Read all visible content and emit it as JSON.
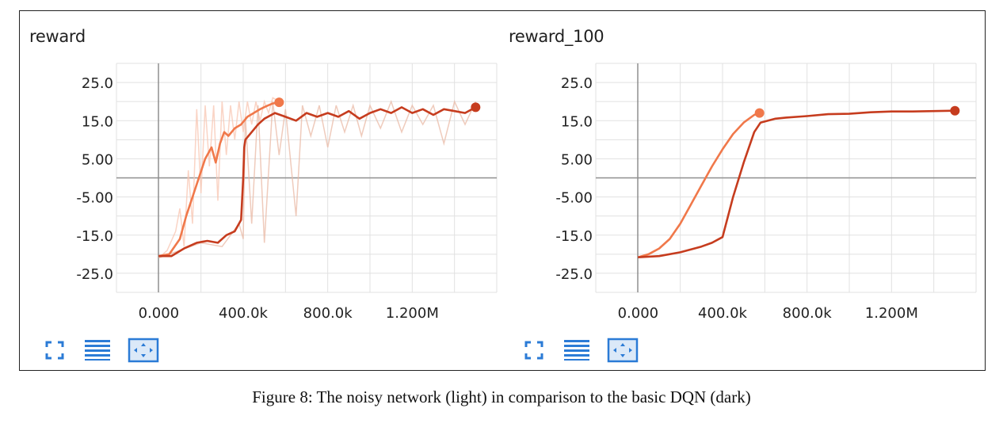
{
  "caption": "Figure 8: The noisy network (light) in comparison to the basic DQN (dark)",
  "colors": {
    "light": "#f0784a",
    "dark": "#c63c1e",
    "raw_light": "#f8c6b2",
    "raw_dark": "#eab9a6",
    "axis": "#8f8f8f",
    "grid": "#e1e1e1",
    "icon": "#2b7bd6"
  },
  "panels": [
    {
      "title": "reward",
      "toolbar": [
        "expand-icon",
        "list-icon",
        "fit-domain-icon"
      ]
    },
    {
      "title": "reward_100",
      "toolbar": [
        "expand-icon",
        "list-icon",
        "fit-domain-icon"
      ]
    }
  ],
  "chart_data": [
    {
      "type": "line",
      "title": "reward",
      "xlim": [
        -200000,
        1600000
      ],
      "ylim": [
        -30,
        30
      ],
      "grid": true,
      "x_ticks": [
        0,
        400000,
        800000,
        1200000
      ],
      "x_tick_labels": [
        "0.000",
        "400.0k",
        "800.0k",
        "1.200M"
      ],
      "y_ticks": [
        25,
        15,
        5,
        -5,
        -15,
        -25
      ],
      "y_tick_labels": [
        "25.0",
        "15.0",
        "5.00",
        "-5.00",
        "-15.0",
        "-25.0"
      ],
      "series": [
        {
          "style": "light",
          "smoothed": [
            [
              0,
              -20.5
            ],
            [
              50000,
              -20
            ],
            [
              100000,
              -16
            ],
            [
              130000,
              -10
            ],
            [
              160000,
              -5
            ],
            [
              190000,
              0
            ],
            [
              220000,
              5
            ],
            [
              250000,
              8
            ],
            [
              270000,
              4
            ],
            [
              290000,
              9
            ],
            [
              310000,
              12
            ],
            [
              330000,
              11
            ],
            [
              360000,
              13
            ],
            [
              390000,
              14
            ],
            [
              420000,
              16
            ],
            [
              450000,
              17
            ],
            [
              480000,
              18
            ],
            [
              510000,
              18.8
            ],
            [
              540000,
              19.5
            ],
            [
              570000,
              19.8
            ]
          ],
          "raw": [
            [
              0,
              -21
            ],
            [
              40000,
              -19
            ],
            [
              80000,
              -14
            ],
            [
              100000,
              -8
            ],
            [
              120000,
              -18
            ],
            [
              140000,
              2
            ],
            [
              160000,
              -12
            ],
            [
              180000,
              18
            ],
            [
              200000,
              -4
            ],
            [
              220000,
              19
            ],
            [
              240000,
              3
            ],
            [
              260000,
              19
            ],
            [
              280000,
              -6
            ],
            [
              300000,
              20
            ],
            [
              320000,
              6
            ],
            [
              340000,
              19
            ],
            [
              360000,
              10
            ],
            [
              380000,
              20
            ],
            [
              400000,
              12
            ],
            [
              420000,
              20
            ],
            [
              440000,
              14
            ],
            [
              460000,
              20
            ],
            [
              480000,
              15
            ],
            [
              500000,
              20
            ],
            [
              520000,
              17
            ],
            [
              540000,
              21
            ],
            [
              570000,
              20
            ]
          ]
        },
        {
          "style": "dark",
          "smoothed": [
            [
              0,
              -20.5
            ],
            [
              60000,
              -20.5
            ],
            [
              120000,
              -18.5
            ],
            [
              180000,
              -17
            ],
            [
              230000,
              -16.5
            ],
            [
              280000,
              -17
            ],
            [
              320000,
              -15
            ],
            [
              360000,
              -14
            ],
            [
              390000,
              -11
            ],
            [
              400000,
              0
            ],
            [
              405000,
              8
            ],
            [
              410000,
              10
            ],
            [
              440000,
              12
            ],
            [
              470000,
              14
            ],
            [
              500000,
              15.5
            ],
            [
              550000,
              17
            ],
            [
              600000,
              16
            ],
            [
              650000,
              15
            ],
            [
              700000,
              17
            ],
            [
              750000,
              16
            ],
            [
              800000,
              17
            ],
            [
              850000,
              16
            ],
            [
              900000,
              17.5
            ],
            [
              950000,
              15.5
            ],
            [
              1000000,
              17
            ],
            [
              1050000,
              18
            ],
            [
              1100000,
              17
            ],
            [
              1150000,
              18.5
            ],
            [
              1200000,
              17
            ],
            [
              1250000,
              18
            ],
            [
              1300000,
              16.5
            ],
            [
              1350000,
              18
            ],
            [
              1400000,
              17.5
            ],
            [
              1450000,
              17
            ],
            [
              1500000,
              18.5
            ]
          ],
          "raw": [
            [
              0,
              -21
            ],
            [
              100000,
              -19
            ],
            [
              200000,
              -17
            ],
            [
              300000,
              -18
            ],
            [
              380000,
              -12
            ],
            [
              400000,
              -16
            ],
            [
              410000,
              16
            ],
            [
              440000,
              -12
            ],
            [
              470000,
              19
            ],
            [
              500000,
              -17
            ],
            [
              540000,
              20
            ],
            [
              570000,
              6
            ],
            [
              600000,
              18
            ],
            [
              650000,
              -10
            ],
            [
              680000,
              19
            ],
            [
              720000,
              11
            ],
            [
              760000,
              19
            ],
            [
              800000,
              8
            ],
            [
              840000,
              19
            ],
            [
              880000,
              12
            ],
            [
              920000,
              19
            ],
            [
              960000,
              11
            ],
            [
              1000000,
              19
            ],
            [
              1050000,
              13
            ],
            [
              1100000,
              20
            ],
            [
              1150000,
              12
            ],
            [
              1200000,
              19
            ],
            [
              1250000,
              14
            ],
            [
              1300000,
              19
            ],
            [
              1350000,
              9
            ],
            [
              1400000,
              20
            ],
            [
              1450000,
              14
            ],
            [
              1500000,
              20
            ]
          ]
        }
      ]
    },
    {
      "type": "line",
      "title": "reward_100",
      "xlim": [
        -200000,
        1600000
      ],
      "ylim": [
        -30,
        30
      ],
      "grid": true,
      "x_ticks": [
        0,
        400000,
        800000,
        1200000
      ],
      "x_tick_labels": [
        "0.000",
        "400.0k",
        "800.0k",
        "1.200M"
      ],
      "y_ticks": [
        25,
        15,
        5,
        -5,
        -15,
        -25
      ],
      "y_tick_labels": [
        "25.0",
        "15.0",
        "5.00",
        "-5.00",
        "-15.0",
        "-25.0"
      ],
      "series": [
        {
          "style": "light",
          "smoothed": [
            [
              0,
              -20.8
            ],
            [
              50000,
              -20
            ],
            [
              100000,
              -18.5
            ],
            [
              150000,
              -16
            ],
            [
              200000,
              -12
            ],
            [
              250000,
              -7
            ],
            [
              300000,
              -2
            ],
            [
              350000,
              3
            ],
            [
              400000,
              7.5
            ],
            [
              450000,
              11.5
            ],
            [
              500000,
              14.5
            ],
            [
              550000,
              16.5
            ],
            [
              575000,
              17
            ]
          ]
        },
        {
          "style": "dark",
          "smoothed": [
            [
              0,
              -20.8
            ],
            [
              100000,
              -20.5
            ],
            [
              200000,
              -19.5
            ],
            [
              300000,
              -18
            ],
            [
              350000,
              -17
            ],
            [
              400000,
              -15.5
            ],
            [
              450000,
              -5
            ],
            [
              500000,
              4
            ],
            [
              550000,
              12
            ],
            [
              580000,
              14.5
            ],
            [
              650000,
              15.5
            ],
            [
              700000,
              15.8
            ],
            [
              800000,
              16.2
            ],
            [
              900000,
              16.7
            ],
            [
              1000000,
              16.8
            ],
            [
              1100000,
              17.2
            ],
            [
              1200000,
              17.4
            ],
            [
              1300000,
              17.4
            ],
            [
              1400000,
              17.5
            ],
            [
              1500000,
              17.6
            ]
          ]
        }
      ]
    }
  ]
}
